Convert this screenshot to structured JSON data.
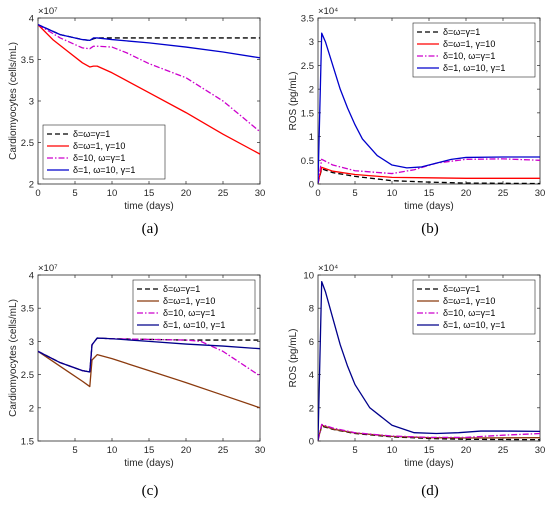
{
  "chart_data": [
    {
      "panel_label": "(a)",
      "type": "line",
      "xlabel": "time (days)",
      "ylabel": "Cardiomyocytes (cells/mL)",
      "exponent_label": "×10⁷",
      "xlim": [
        0,
        30
      ],
      "ylim": [
        2,
        4
      ],
      "xticks": [
        "0",
        "5",
        "10",
        "15",
        "20",
        "25",
        "30"
      ],
      "yticks": [
        "2",
        "2.5",
        "3",
        "3.5",
        "4"
      ],
      "legend_position": "lower-left",
      "series": [
        {
          "name": "δ=ω=γ=1",
          "color": "#000000",
          "dash": "dashed",
          "points": [
            [
              0,
              3.92
            ],
            [
              3,
              3.8
            ],
            [
              6,
              3.74
            ],
            [
              7,
              3.73
            ],
            [
              7.5,
              3.75
            ],
            [
              8,
              3.76
            ],
            [
              10,
              3.76
            ],
            [
              15,
              3.76
            ],
            [
              20,
              3.76
            ],
            [
              25,
              3.76
            ],
            [
              30,
              3.76
            ]
          ]
        },
        {
          "name": "δ=ω=1, γ=10",
          "color": "#ff0000",
          "dash": "solid",
          "points": [
            [
              0,
              3.92
            ],
            [
              2,
              3.74
            ],
            [
              4,
              3.6
            ],
            [
              6,
              3.46
            ],
            [
              7,
              3.41
            ],
            [
              7.5,
              3.42
            ],
            [
              8,
              3.42
            ],
            [
              10,
              3.34
            ],
            [
              15,
              3.1
            ],
            [
              20,
              2.86
            ],
            [
              25,
              2.6
            ],
            [
              30,
              2.36
            ]
          ]
        },
        {
          "name": "δ=10, ω=γ=1",
          "color": "#cc00cc",
          "dash": "dashdot",
          "points": [
            [
              0,
              3.92
            ],
            [
              3,
              3.76
            ],
            [
              6,
              3.64
            ],
            [
              7,
              3.63
            ],
            [
              7.5,
              3.66
            ],
            [
              8,
              3.66
            ],
            [
              10,
              3.65
            ],
            [
              12,
              3.58
            ],
            [
              15,
              3.45
            ],
            [
              20,
              3.28
            ],
            [
              25,
              3.0
            ],
            [
              30,
              2.63
            ]
          ]
        },
        {
          "name": "δ=1, ω=10, γ=1",
          "color": "#0000cc",
          "dash": "solid",
          "points": [
            [
              0,
              3.92
            ],
            [
              3,
              3.8
            ],
            [
              6,
              3.74
            ],
            [
              7,
              3.73
            ],
            [
              7.5,
              3.76
            ],
            [
              8,
              3.76
            ],
            [
              10,
              3.74
            ],
            [
              15,
              3.7
            ],
            [
              20,
              3.65
            ],
            [
              25,
              3.59
            ],
            [
              30,
              3.52
            ]
          ]
        }
      ]
    },
    {
      "panel_label": "(b)",
      "type": "line",
      "xlabel": "time (days)",
      "ylabel": "ROS (pg/mL)",
      "exponent_label": "×10⁴",
      "xlim": [
        0,
        30
      ],
      "ylim": [
        0,
        3.5
      ],
      "xticks": [
        "0",
        "5",
        "10",
        "15",
        "20",
        "25",
        "30"
      ],
      "yticks": [
        "0",
        "0.5",
        "1",
        "1.5",
        "2",
        "2.5",
        "3",
        "3.5"
      ],
      "legend_position": "top-right",
      "series": [
        {
          "name": "δ=ω=γ=1",
          "color": "#000000",
          "dash": "dashed",
          "points": [
            [
              0,
              0.02
            ],
            [
              0.5,
              0.32
            ],
            [
              2,
              0.24
            ],
            [
              5,
              0.16
            ],
            [
              10,
              0.07
            ],
            [
              15,
              0.04
            ],
            [
              20,
              0.02
            ],
            [
              30,
              0.01
            ]
          ]
        },
        {
          "name": "δ=ω=1, γ=10",
          "color": "#ff0000",
          "dash": "solid",
          "points": [
            [
              0,
              0.02
            ],
            [
              0.5,
              0.35
            ],
            [
              2,
              0.27
            ],
            [
              5,
              0.2
            ],
            [
              10,
              0.14
            ],
            [
              15,
              0.13
            ],
            [
              20,
              0.12
            ],
            [
              30,
              0.12
            ]
          ]
        },
        {
          "name": "δ=10, ω=γ=1",
          "color": "#cc00cc",
          "dash": "dashdot",
          "points": [
            [
              0,
              0.02
            ],
            [
              0.5,
              0.52
            ],
            [
              2,
              0.4
            ],
            [
              5,
              0.28
            ],
            [
              10,
              0.22
            ],
            [
              13,
              0.3
            ],
            [
              16,
              0.44
            ],
            [
              20,
              0.52
            ],
            [
              25,
              0.53
            ],
            [
              30,
              0.5
            ]
          ]
        },
        {
          "name": "δ=1, ω=10, γ=1",
          "color": "#0000cc",
          "dash": "solid",
          "points": [
            [
              0,
              0.02
            ],
            [
              0.5,
              3.18
            ],
            [
              1,
              3.0
            ],
            [
              2,
              2.5
            ],
            [
              3,
              2.0
            ],
            [
              4,
              1.6
            ],
            [
              5,
              1.25
            ],
            [
              6,
              0.95
            ],
            [
              8,
              0.6
            ],
            [
              10,
              0.4
            ],
            [
              12,
              0.34
            ],
            [
              14,
              0.36
            ],
            [
              16,
              0.44
            ],
            [
              18,
              0.52
            ],
            [
              20,
              0.56
            ],
            [
              25,
              0.57
            ],
            [
              30,
              0.57
            ]
          ]
        }
      ]
    },
    {
      "panel_label": "(c)",
      "type": "line",
      "xlabel": "time (days)",
      "ylabel": "Cardiomyocytes (cells/mL)",
      "exponent_label": "×10⁷",
      "xlim": [
        0,
        30
      ],
      "ylim": [
        1.5,
        4
      ],
      "xticks": [
        "5",
        "10",
        "15",
        "20",
        "25",
        "30"
      ],
      "yticks": [
        "1.5",
        "2",
        "2.5",
        "3",
        "3.5",
        "4"
      ],
      "legend_position": "top-right",
      "series": [
        {
          "name": "δ=ω=γ=1",
          "color": "#000000",
          "dash": "dashed",
          "points": [
            [
              0,
              2.85
            ],
            [
              3,
              2.68
            ],
            [
              6,
              2.56
            ],
            [
              7,
              2.54
            ],
            [
              7.3,
              2.95
            ],
            [
              8,
              3.05
            ],
            [
              10,
              3.04
            ],
            [
              15,
              3.03
            ],
            [
              20,
              3.02
            ],
            [
              25,
              3.02
            ],
            [
              30,
              3.02
            ]
          ]
        },
        {
          "name": "δ=ω=1, γ=10",
          "color": "#8b3a0e",
          "dash": "solid",
          "points": [
            [
              0,
              2.85
            ],
            [
              2,
              2.7
            ],
            [
              4,
              2.55
            ],
            [
              6,
              2.4
            ],
            [
              7,
              2.32
            ],
            [
              7.3,
              2.72
            ],
            [
              8,
              2.8
            ],
            [
              10,
              2.74
            ],
            [
              15,
              2.56
            ],
            [
              20,
              2.38
            ],
            [
              25,
              2.19
            ],
            [
              30,
              2.0
            ]
          ]
        },
        {
          "name": "δ=10, ω=γ=1",
          "color": "#cc00cc",
          "dash": "dashdot",
          "points": [
            [
              0,
              2.85
            ],
            [
              3,
              2.68
            ],
            [
              6,
              2.56
            ],
            [
              7,
              2.54
            ],
            [
              7.3,
              2.95
            ],
            [
              8,
              3.05
            ],
            [
              10,
              3.04
            ],
            [
              15,
              3.03
            ],
            [
              20,
              3.02
            ],
            [
              22,
              3.0
            ],
            [
              25,
              2.85
            ],
            [
              30,
              2.48
            ]
          ]
        },
        {
          "name": "δ=1, ω=10, γ=1",
          "color": "#00008b",
          "dash": "solid",
          "points": [
            [
              0,
              2.85
            ],
            [
              3,
              2.68
            ],
            [
              6,
              2.56
            ],
            [
              7,
              2.54
            ],
            [
              7.3,
              2.95
            ],
            [
              8,
              3.05
            ],
            [
              10,
              3.04
            ],
            [
              15,
              3.0
            ],
            [
              20,
              2.96
            ],
            [
              25,
              2.93
            ],
            [
              30,
              2.89
            ]
          ]
        }
      ]
    },
    {
      "panel_label": "(d)",
      "type": "line",
      "xlabel": "time (days)",
      "ylabel": "ROS (pg/mL)",
      "exponent_label": "×10⁴",
      "xlim": [
        0,
        30
      ],
      "ylim": [
        0,
        10
      ],
      "xticks": [
        "5",
        "10",
        "15",
        "20",
        "25",
        "30"
      ],
      "yticks": [
        "0",
        "2",
        "4",
        "6",
        "8",
        "10"
      ],
      "legend_position": "top-right",
      "series": [
        {
          "name": "δ=ω=γ=1",
          "color": "#000000",
          "dash": "dashed",
          "points": [
            [
              0,
              0.05
            ],
            [
              0.5,
              0.9
            ],
            [
              2,
              0.7
            ],
            [
              5,
              0.45
            ],
            [
              10,
              0.25
            ],
            [
              15,
              0.15
            ],
            [
              20,
              0.1
            ],
            [
              30,
              0.08
            ]
          ]
        },
        {
          "name": "δ=ω=1, γ=10",
          "color": "#8b3a0e",
          "dash": "solid",
          "points": [
            [
              0,
              0.05
            ],
            [
              0.5,
              0.95
            ],
            [
              2,
              0.72
            ],
            [
              5,
              0.48
            ],
            [
              10,
              0.28
            ],
            [
              15,
              0.2
            ],
            [
              20,
              0.18
            ],
            [
              30,
              0.2
            ]
          ]
        },
        {
          "name": "δ=10, ω=γ=1",
          "color": "#cc00cc",
          "dash": "dashdot",
          "points": [
            [
              0,
              0.05
            ],
            [
              0.5,
              1.0
            ],
            [
              2,
              0.78
            ],
            [
              5,
              0.5
            ],
            [
              10,
              0.3
            ],
            [
              15,
              0.22
            ],
            [
              20,
              0.22
            ],
            [
              25,
              0.35
            ],
            [
              30,
              0.45
            ]
          ]
        },
        {
          "name": "δ=1, ω=10, γ=1",
          "color": "#00008b",
          "dash": "solid",
          "points": [
            [
              0,
              0.05
            ],
            [
              0.5,
              9.6
            ],
            [
              1,
              9.0
            ],
            [
              2,
              7.4
            ],
            [
              3,
              5.8
            ],
            [
              4,
              4.5
            ],
            [
              5,
              3.4
            ],
            [
              7,
              2.0
            ],
            [
              10,
              0.95
            ],
            [
              13,
              0.5
            ],
            [
              16,
              0.45
            ],
            [
              19,
              0.5
            ],
            [
              22,
              0.6
            ],
            [
              25,
              0.6
            ],
            [
              30,
              0.58
            ]
          ]
        }
      ]
    }
  ]
}
